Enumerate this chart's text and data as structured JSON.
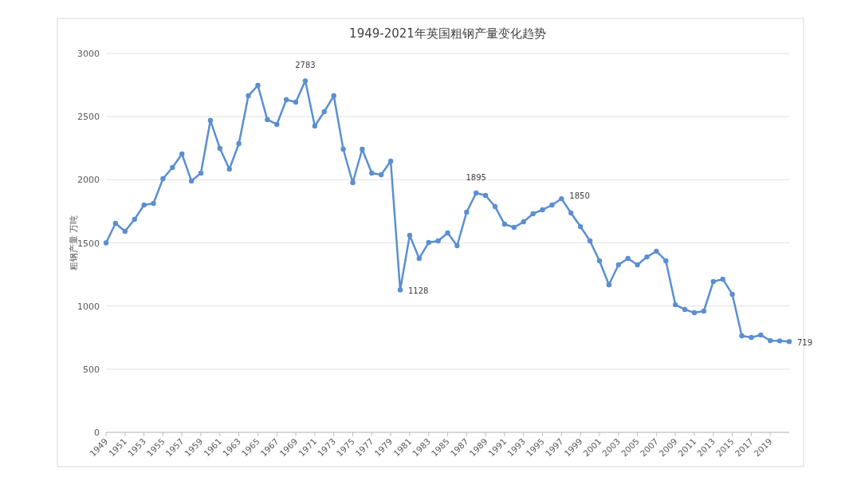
{
  "chart_data": {
    "type": "line",
    "title": "1949-2021年英国粗钢产量变化趋势",
    "ylabel": "粗钢产量  万吨",
    "x": [
      1949,
      1950,
      1951,
      1952,
      1953,
      1954,
      1955,
      1956,
      1957,
      1958,
      1959,
      1960,
      1961,
      1962,
      1963,
      1964,
      1965,
      1966,
      1967,
      1968,
      1969,
      1970,
      1971,
      1972,
      1973,
      1974,
      1975,
      1976,
      1977,
      1978,
      1979,
      1980,
      1981,
      1982,
      1983,
      1984,
      1985,
      1986,
      1987,
      1988,
      1989,
      1990,
      1991,
      1992,
      1993,
      1994,
      1995,
      1996,
      1997,
      1998,
      1999,
      2000,
      2001,
      2002,
      2003,
      2004,
      2005,
      2006,
      2007,
      2008,
      2009,
      2010,
      2011,
      2012,
      2013,
      2014,
      2015,
      2016,
      2017,
      2018,
      2019,
      2020,
      2021
    ],
    "series": [
      {
        "color": "#5b8fd0",
        "values": [
          1500,
          1655,
          1592,
          1686,
          1800,
          1813,
          2008,
          2097,
          2204,
          1990,
          2053,
          2470,
          2248,
          2084,
          2286,
          2665,
          2747,
          2476,
          2438,
          2634,
          2615,
          2783,
          2425,
          2539,
          2665,
          2242,
          1977,
          2242,
          2053,
          2040,
          2147,
          1128,
          1560,
          1377,
          1503,
          1516,
          1579,
          1478,
          1743,
          1895,
          1876,
          1787,
          1648,
          1623,
          1667,
          1731,
          1762,
          1800,
          1850,
          1737,
          1629,
          1516,
          1358,
          1168,
          1326,
          1377,
          1326,
          1389,
          1434,
          1358,
          1010,
          973,
          947,
          960,
          1194,
          1213,
          1093,
          764,
          752,
          771,
          726,
          724,
          719
        ]
      }
    ],
    "xlim": [
      1949,
      2021
    ],
    "xticks": [
      1949,
      1951,
      1953,
      1955,
      1957,
      1959,
      1961,
      1963,
      1965,
      1967,
      1969,
      1971,
      1973,
      1975,
      1977,
      1979,
      1981,
      1983,
      1985,
      1987,
      1989,
      1991,
      1993,
      1995,
      1997,
      1999,
      2001,
      2003,
      2005,
      2007,
      2009,
      2011,
      2013,
      2015,
      2017,
      2019
    ],
    "ylim": [
      0,
      3000
    ],
    "yticks": [
      0,
      500,
      1000,
      1500,
      2000,
      2500,
      3000
    ],
    "grid": "y",
    "marker": "circle",
    "line_style": "solid",
    "annotations": [
      {
        "text": "2783",
        "x": 1970,
        "y": 2783
      },
      {
        "text": "1128",
        "x": 1980,
        "y": 1128
      },
      {
        "text": "1895",
        "x": 1988,
        "y": 1895
      },
      {
        "text": "1850",
        "x": 1997,
        "y": 1850
      },
      {
        "text": "719",
        "x": 2021,
        "y": 719
      }
    ]
  }
}
